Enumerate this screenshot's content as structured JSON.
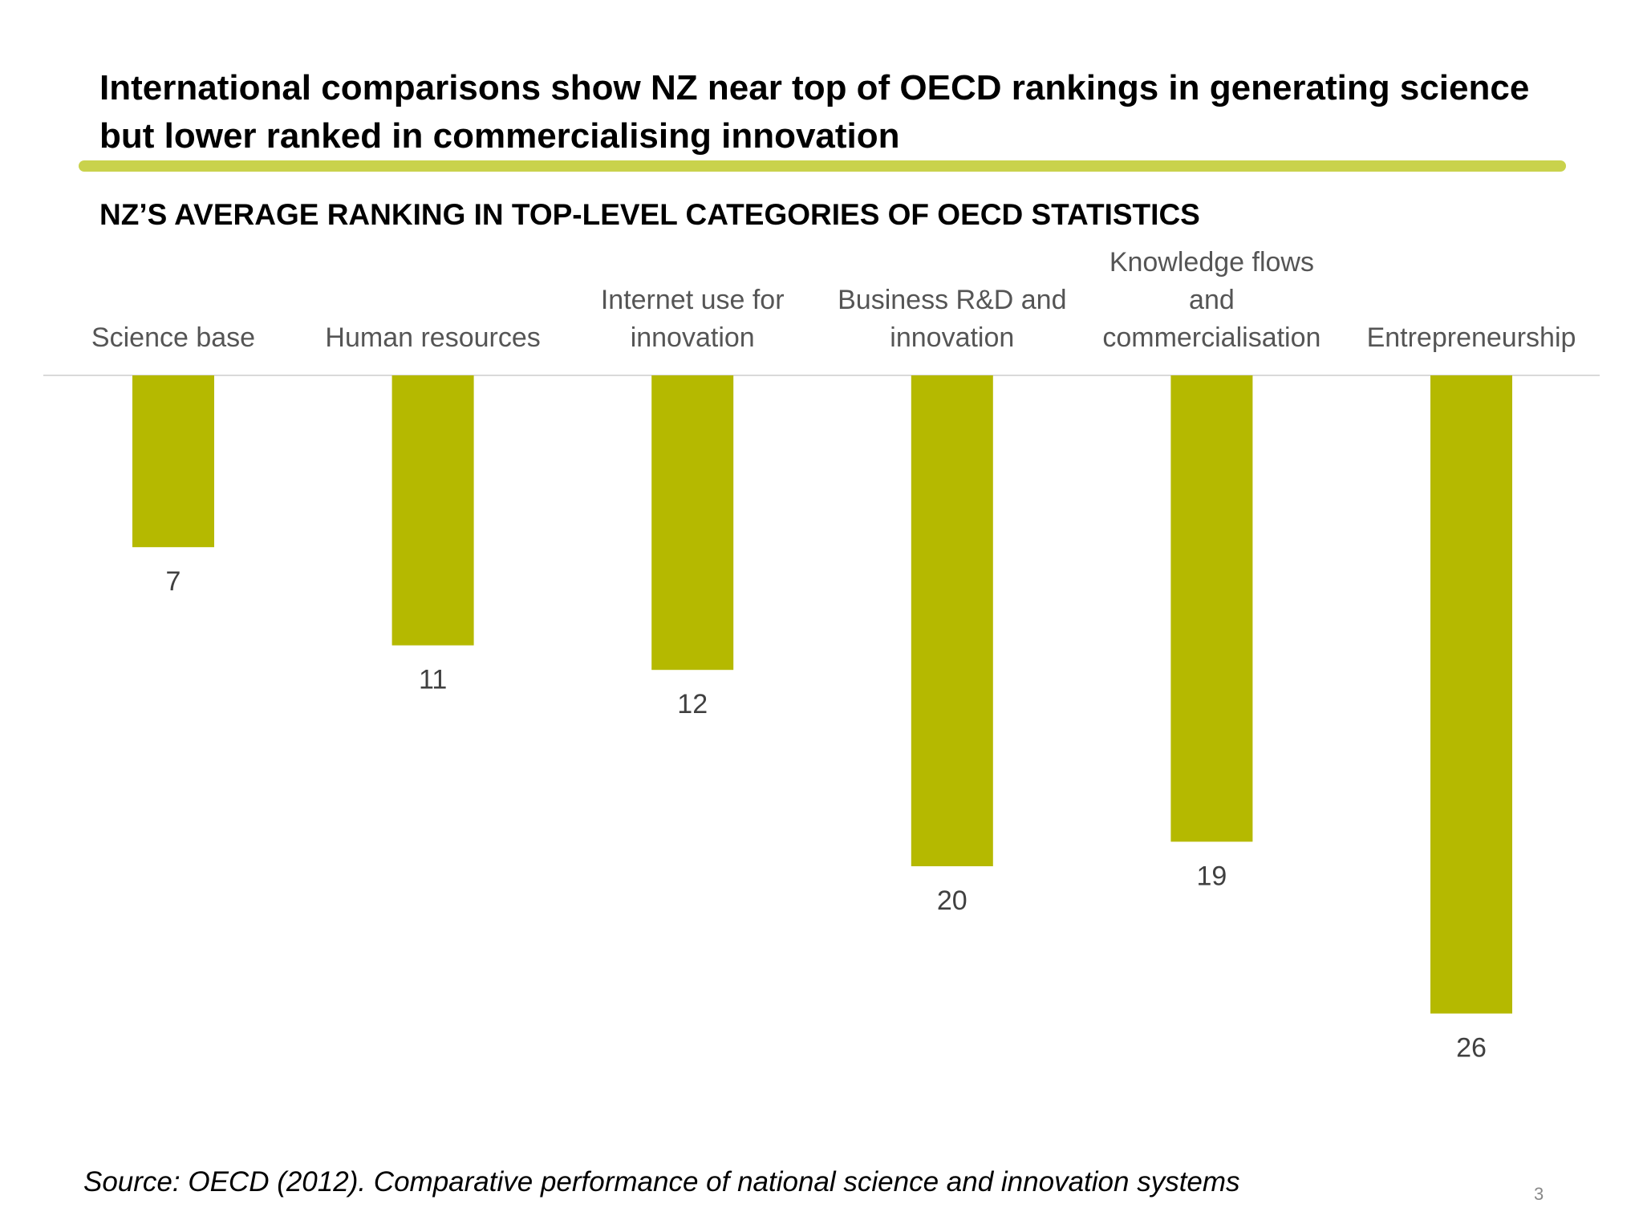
{
  "slide": {
    "title": "International comparisons show NZ near top of OECD rankings in generating science but lower ranked in commercialising innovation",
    "subtitle": "NZ’S AVERAGE RANKING IN TOP-LEVEL CATEGORIES OF OECD STATISTICS",
    "source": "Source: OECD (2012). Comparative performance of national science and innovation systems",
    "page_number": "3",
    "accent_color": "#c9d24c",
    "bar_color": "#b5b900"
  },
  "chart_data": {
    "type": "bar",
    "orientation": "vertical-downward",
    "categories": [
      [
        "Science base"
      ],
      [
        "Human resources"
      ],
      [
        "Internet use for",
        "innovation"
      ],
      [
        "Business R&D and",
        "innovation"
      ],
      [
        "Knowledge flows",
        "and",
        "commercialisation"
      ],
      [
        "Entrepreneurship"
      ]
    ],
    "values": [
      7,
      11,
      12,
      20,
      19,
      26
    ],
    "ylim": [
      0,
      30
    ],
    "axis_position": "top",
    "grid": false,
    "legend": "none",
    "title": "NZ’S AVERAGE RANKING IN TOP-LEVEL CATEGORIES OF OECD STATISTICS",
    "xlabel": "",
    "ylabel": ""
  }
}
